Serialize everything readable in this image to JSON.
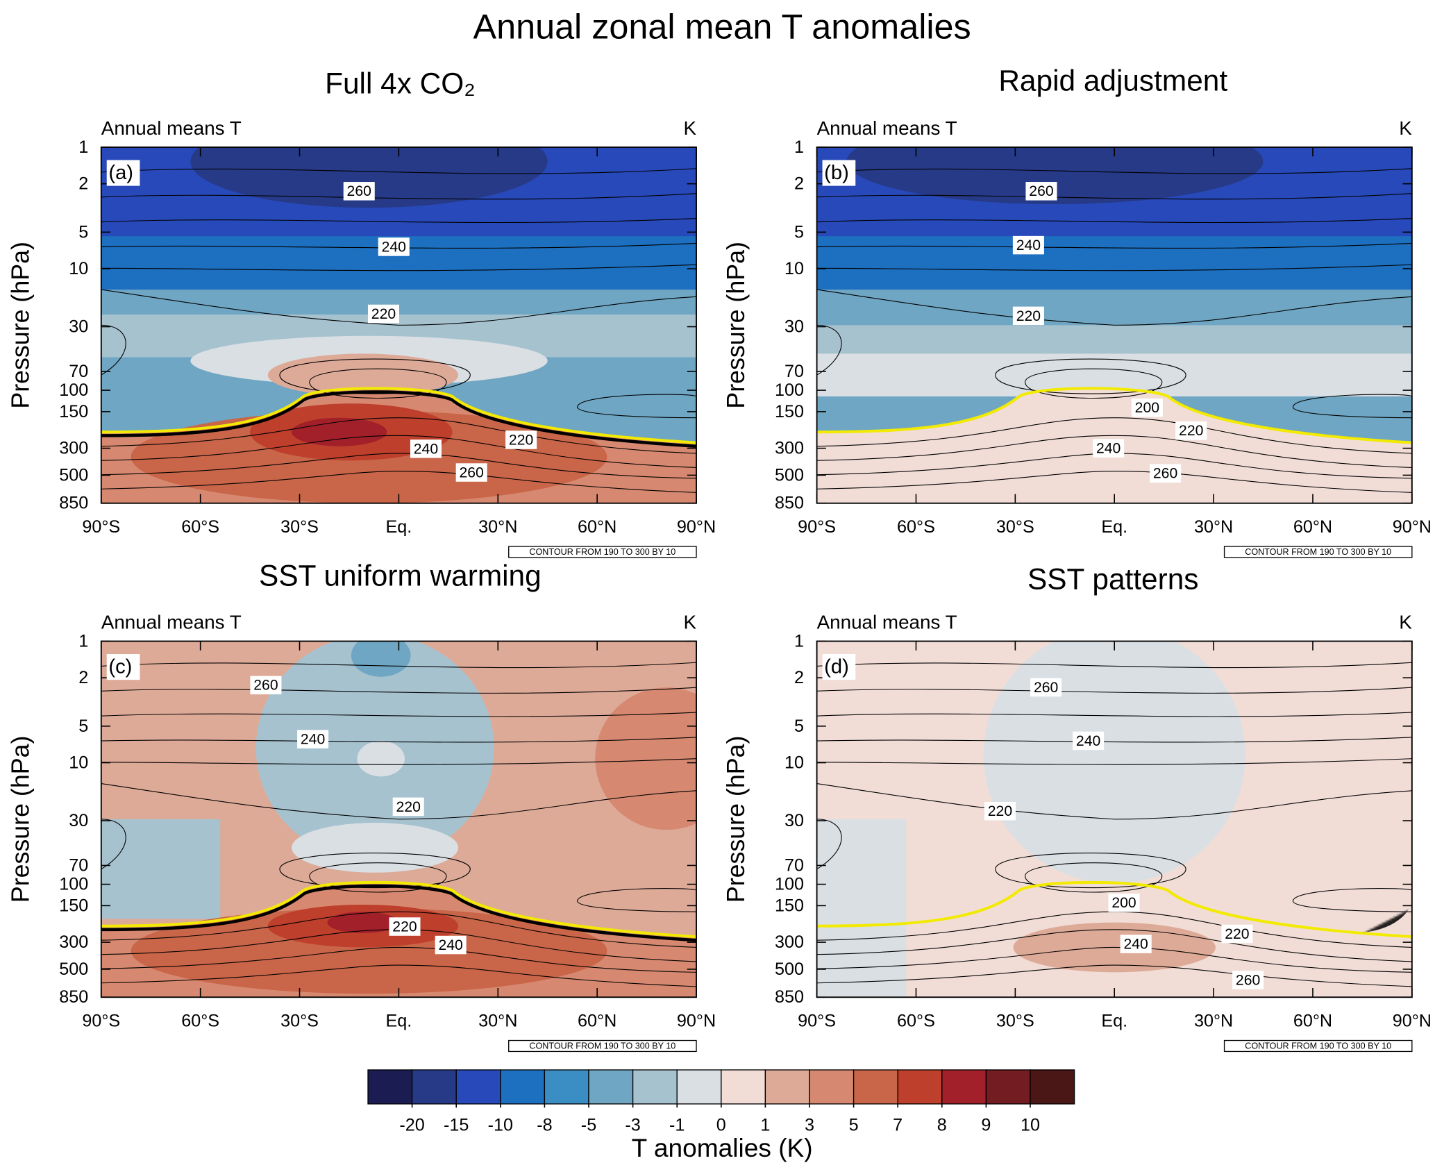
{
  "title": "Annual zonal mean T anomalies",
  "chart_data": [
    {
      "type": "contour",
      "title": "Full 4x CO₂",
      "left_label": "Annual means T",
      "right_label": "K",
      "panel_label": "(a)",
      "ylabel": "Pressure (hPa)",
      "footnote": "CONTOUR FROM 190 TO 300 BY 10",
      "log_y": true,
      "tropopause_black": true,
      "xlim": [
        -90,
        90
      ],
      "xticks": [
        {
          "value": -90,
          "label": "90°S"
        },
        {
          "value": -60,
          "label": "60°S"
        },
        {
          "value": -30,
          "label": "30°S"
        },
        {
          "value": 0,
          "label": "Eq."
        },
        {
          "value": 30,
          "label": "30°N"
        },
        {
          "value": 60,
          "label": "60°N"
        },
        {
          "value": 90,
          "label": "90°N"
        }
      ],
      "ylim": [
        1,
        850
      ],
      "yticks": [
        1,
        2,
        5,
        10,
        30,
        70,
        100,
        150,
        300,
        500,
        850
      ],
      "contour_labels": [
        {
          "label": 260,
          "x": -12,
          "y": 2.3
        },
        {
          "label": 240,
          "x": -1.5,
          "y": 6.6
        },
        {
          "label": 220,
          "x": -4.6,
          "y": 23.5
        },
        {
          "label": 240,
          "x": 8.2,
          "y": 303
        },
        {
          "label": 220,
          "x": 37,
          "y": 256
        },
        {
          "label": 260,
          "x": 22,
          "y": 475
        }
      ]
    },
    {
      "type": "contour",
      "title": "Rapid adjustment",
      "left_label": "Annual means T",
      "right_label": "K",
      "panel_label": "(b)",
      "ylabel": "Pressure (hPa)",
      "footnote": "CONTOUR FROM 190 TO 300 BY 10",
      "log_y": true,
      "tropopause_black": false,
      "xlim": [
        -90,
        90
      ],
      "xticks": [
        {
          "value": -90,
          "label": "90°S"
        },
        {
          "value": -60,
          "label": "60°S"
        },
        {
          "value": -30,
          "label": "30°S"
        },
        {
          "value": 0,
          "label": "Eq."
        },
        {
          "value": 30,
          "label": "30°N"
        },
        {
          "value": 60,
          "label": "60°N"
        },
        {
          "value": 90,
          "label": "90°N"
        }
      ],
      "ylim": [
        1,
        850
      ],
      "yticks": [
        1,
        2,
        5,
        10,
        30,
        70,
        100,
        150,
        300,
        500,
        850
      ],
      "contour_labels": [
        {
          "label": 260,
          "x": -22.1,
          "y": 2.3
        },
        {
          "label": 240,
          "x": -26,
          "y": 6.4
        },
        {
          "label": 220,
          "x": -26,
          "y": 24.4
        },
        {
          "label": 200,
          "x": 9.9,
          "y": 139
        },
        {
          "label": 220,
          "x": 23.2,
          "y": 215
        },
        {
          "label": 240,
          "x": -1.8,
          "y": 300
        },
        {
          "label": 260,
          "x": 15.4,
          "y": 483
        }
      ]
    },
    {
      "type": "contour",
      "title": "SST uniform warming",
      "left_label": "Annual means T",
      "right_label": "K",
      "panel_label": "(c)",
      "ylabel": "Pressure (hPa)",
      "footnote": "CONTOUR FROM 190 TO 300 BY 10",
      "log_y": true,
      "tropopause_black": true,
      "xlim": [
        -90,
        90
      ],
      "xticks": [
        {
          "value": -90,
          "label": "90°S"
        },
        {
          "value": -60,
          "label": "60°S"
        },
        {
          "value": -30,
          "label": "30°S"
        },
        {
          "value": 0,
          "label": "Eq."
        },
        {
          "value": 30,
          "label": "30°N"
        },
        {
          "value": 60,
          "label": "60°N"
        },
        {
          "value": 90,
          "label": "90°N"
        }
      ],
      "ylim": [
        1,
        850
      ],
      "yticks": [
        1,
        2,
        5,
        10,
        30,
        70,
        100,
        150,
        300,
        500,
        850
      ],
      "contour_labels": [
        {
          "label": 260,
          "x": -40.2,
          "y": 2.3
        },
        {
          "label": 240,
          "x": -26,
          "y": 6.4
        },
        {
          "label": 220,
          "x": 2.9,
          "y": 23
        },
        {
          "label": 220,
          "x": 1.8,
          "y": 223
        },
        {
          "label": 240,
          "x": 15.7,
          "y": 316
        }
      ]
    },
    {
      "type": "contour",
      "title": "SST patterns",
      "left_label": "Annual means T",
      "right_label": "K",
      "panel_label": "(d)",
      "ylabel": "Pressure (hPa)",
      "footnote": "CONTOUR FROM 190 TO 300 BY 10",
      "log_y": true,
      "tropopause_black": false,
      "xlim": [
        -90,
        90
      ],
      "xticks": [
        {
          "value": -90,
          "label": "90°S"
        },
        {
          "value": -60,
          "label": "60°S"
        },
        {
          "value": -30,
          "label": "30°S"
        },
        {
          "value": 0,
          "label": "Eq."
        },
        {
          "value": 30,
          "label": "30°N"
        },
        {
          "value": 60,
          "label": "60°N"
        },
        {
          "value": 90,
          "label": "90°N"
        }
      ],
      "ylim": [
        1,
        850
      ],
      "yticks": [
        1,
        2,
        5,
        10,
        30,
        70,
        100,
        150,
        300,
        500,
        850
      ],
      "contour_labels": [
        {
          "label": 260,
          "x": -20.7,
          "y": 2.4
        },
        {
          "label": 240,
          "x": -7.9,
          "y": 6.6
        },
        {
          "label": 220,
          "x": -34.6,
          "y": 25
        },
        {
          "label": 200,
          "x": 2.9,
          "y": 142
        },
        {
          "label": 240,
          "x": 6.5,
          "y": 310
        },
        {
          "label": 220,
          "x": 37.1,
          "y": 256
        },
        {
          "label": 260,
          "x": 40.4,
          "y": 614
        }
      ]
    }
  ],
  "colorbar": {
    "label": "T anomalies (K)",
    "levels": [
      -20,
      -15,
      -10,
      -8,
      -5,
      -3,
      -1,
      0,
      1,
      3,
      5,
      7,
      8,
      9,
      10
    ],
    "colors": [
      "#1b1d52",
      "#263a87",
      "#2849b9",
      "#1d6fc0",
      "#3b8ec4",
      "#6fa6c3",
      "#a6c2cf",
      "#d9dfe3",
      "#f1ddd6",
      "#deaa98",
      "#d68970",
      "#c96548",
      "#be3f2c",
      "#a2202a",
      "#731c22",
      "#4b1616"
    ]
  }
}
